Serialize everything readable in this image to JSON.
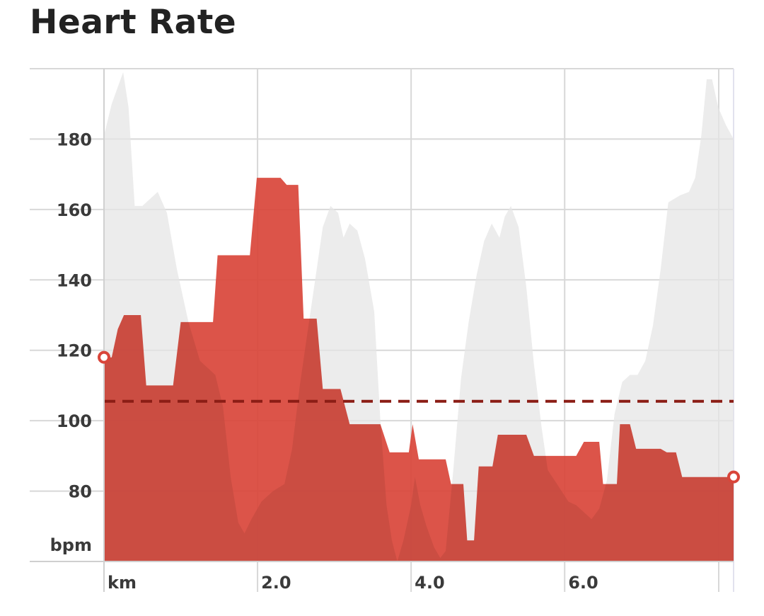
{
  "title": "Heart Rate",
  "colors": {
    "hr_fill": "#d9453a",
    "elevation_fill": "#e6e6e6",
    "average_line": "#8b1d15",
    "grid": "#d8d8d8",
    "marker_stroke": "#d9453a"
  },
  "chart_data": {
    "type": "area",
    "title": "Heart Rate",
    "xlabel": "km",
    "ylabel": "bpm",
    "xlim": [
      0,
      8.2
    ],
    "ylim": [
      60,
      200
    ],
    "x_ticks": [
      {
        "value": 0,
        "label": "km"
      },
      {
        "value": 2.0,
        "label": "2.0"
      },
      {
        "value": 4.0,
        "label": "4.0"
      },
      {
        "value": 6.0,
        "label": "6.0"
      }
    ],
    "y_ticks": [
      {
        "value": 80,
        "label": "80"
      },
      {
        "value": 100,
        "label": "100"
      },
      {
        "value": 120,
        "label": "120"
      },
      {
        "value": 140,
        "label": "140"
      },
      {
        "value": 160,
        "label": "160"
      },
      {
        "value": 180,
        "label": "180"
      },
      {
        "value": 60,
        "label": "bpm"
      }
    ],
    "grid": true,
    "average_bpm": 105.5,
    "series": [
      {
        "points": [
          [
            0.0,
            118
          ],
          [
            0.1,
            118
          ],
          [
            0.18,
            126
          ],
          [
            0.26,
            130
          ],
          [
            0.48,
            130
          ],
          [
            0.55,
            110
          ],
          [
            0.9,
            110
          ],
          [
            1.0,
            128
          ],
          [
            1.42,
            128
          ],
          [
            1.48,
            147
          ],
          [
            1.9,
            147
          ],
          [
            1.99,
            169
          ],
          [
            2.3,
            169
          ],
          [
            2.38,
            167
          ],
          [
            2.53,
            167
          ],
          [
            2.6,
            129
          ],
          [
            2.77,
            129
          ],
          [
            2.85,
            109
          ],
          [
            3.08,
            109
          ],
          [
            3.2,
            99
          ],
          [
            3.6,
            99
          ],
          [
            3.72,
            91
          ],
          [
            3.97,
            91
          ],
          [
            4.02,
            99
          ],
          [
            4.1,
            89
          ],
          [
            4.45,
            89
          ],
          [
            4.52,
            82
          ],
          [
            4.68,
            82
          ],
          [
            4.73,
            66
          ],
          [
            4.82,
            66
          ],
          [
            4.88,
            87
          ],
          [
            5.06,
            87
          ],
          [
            5.13,
            96
          ],
          [
            5.5,
            96
          ],
          [
            5.6,
            90
          ],
          [
            6.15,
            90
          ],
          [
            6.25,
            94
          ],
          [
            6.45,
            94
          ],
          [
            6.5,
            82
          ],
          [
            6.68,
            82
          ],
          [
            6.72,
            99
          ],
          [
            6.85,
            99
          ],
          [
            6.93,
            92
          ],
          [
            7.25,
            92
          ],
          [
            7.33,
            91
          ],
          [
            7.45,
            91
          ],
          [
            7.53,
            84
          ],
          [
            8.2,
            84
          ]
        ]
      },
      {
        "points": [
          [
            0.0,
            181
          ],
          [
            0.1,
            190
          ],
          [
            0.25,
            199
          ],
          [
            0.32,
            189
          ],
          [
            0.4,
            161
          ],
          [
            0.5,
            161
          ],
          [
            0.6,
            163
          ],
          [
            0.7,
            165
          ],
          [
            0.82,
            159
          ],
          [
            0.95,
            143
          ],
          [
            1.1,
            128
          ],
          [
            1.25,
            117
          ],
          [
            1.45,
            113
          ],
          [
            1.55,
            104
          ],
          [
            1.65,
            84
          ],
          [
            1.75,
            71
          ],
          [
            1.83,
            68
          ],
          [
            1.92,
            72
          ],
          [
            2.05,
            77
          ],
          [
            2.2,
            80
          ],
          [
            2.35,
            82
          ],
          [
            2.45,
            92
          ],
          [
            2.55,
            110
          ],
          [
            2.65,
            125
          ],
          [
            2.75,
            140
          ],
          [
            2.85,
            155
          ],
          [
            2.95,
            161
          ],
          [
            3.05,
            159
          ],
          [
            3.12,
            152
          ],
          [
            3.2,
            156
          ],
          [
            3.3,
            154
          ],
          [
            3.4,
            146
          ],
          [
            3.52,
            131
          ],
          [
            3.6,
            100
          ],
          [
            3.68,
            76
          ],
          [
            3.75,
            66
          ],
          [
            3.82,
            60
          ],
          [
            3.9,
            66
          ],
          [
            4.0,
            76
          ],
          [
            4.05,
            84
          ],
          [
            4.12,
            76
          ],
          [
            4.2,
            70
          ],
          [
            4.3,
            64
          ],
          [
            4.38,
            61
          ],
          [
            4.45,
            63
          ],
          [
            4.55,
            86
          ],
          [
            4.65,
            112
          ],
          [
            4.75,
            128
          ],
          [
            4.85,
            141
          ],
          [
            4.95,
            151
          ],
          [
            5.05,
            156
          ],
          [
            5.15,
            152
          ],
          [
            5.22,
            158
          ],
          [
            5.3,
            161
          ],
          [
            5.4,
            155
          ],
          [
            5.5,
            138
          ],
          [
            5.6,
            116
          ],
          [
            5.7,
            98
          ],
          [
            5.78,
            86
          ],
          [
            5.9,
            82
          ],
          [
            6.05,
            77
          ],
          [
            6.15,
            76
          ],
          [
            6.25,
            74
          ],
          [
            6.35,
            72
          ],
          [
            6.45,
            75
          ],
          [
            6.55,
            83
          ],
          [
            6.65,
            102
          ],
          [
            6.75,
            111
          ],
          [
            6.85,
            113
          ],
          [
            6.95,
            113
          ],
          [
            7.05,
            117
          ],
          [
            7.15,
            127
          ],
          [
            7.25,
            143
          ],
          [
            7.35,
            162
          ],
          [
            7.5,
            164
          ],
          [
            7.62,
            165
          ],
          [
            7.7,
            169
          ],
          [
            7.78,
            181
          ],
          [
            7.85,
            197
          ],
          [
            7.92,
            197
          ],
          [
            8.0,
            189
          ],
          [
            8.1,
            184
          ],
          [
            8.2,
            180
          ]
        ]
      }
    ],
    "markers": [
      {
        "x": 0.0,
        "y": 118
      },
      {
        "x": 8.2,
        "y": 84
      }
    ]
  }
}
